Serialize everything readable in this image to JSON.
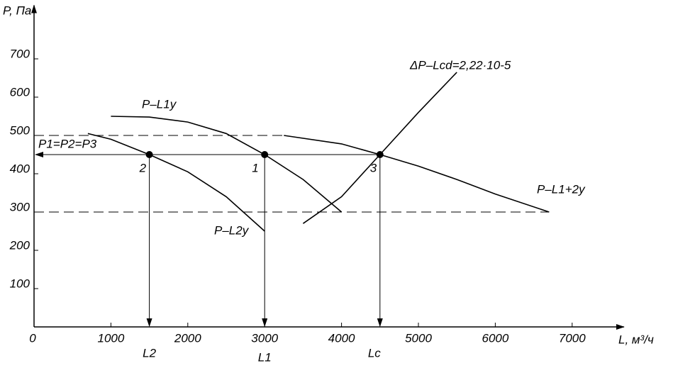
{
  "chart_data": {
    "type": "line",
    "y_label": "P, Па",
    "x_label": "L, м³/ч",
    "xlim": [
      0,
      7600
    ],
    "ylim": [
      0,
      825
    ],
    "xticks": [
      0,
      1000,
      2000,
      3000,
      4000,
      5000,
      6000,
      7000
    ],
    "yticks": [
      100,
      200,
      300,
      400,
      500,
      600,
      700
    ],
    "color": "#000000",
    "series": [
      {
        "name": "P–L1y",
        "x": [
          1000,
          1500,
          2000,
          2500,
          3000,
          3500,
          4000
        ],
        "values": [
          550,
          548,
          535,
          505,
          450,
          385,
          300
        ]
      },
      {
        "name": "P–L2y",
        "x": [
          700,
          1000,
          1500,
          2000,
          2500,
          3000
        ],
        "values": [
          505,
          490,
          450,
          405,
          340,
          250
        ]
      },
      {
        "name": "P–L1+2y",
        "x": [
          3250,
          4000,
          4500,
          5000,
          5500,
          6000,
          6700
        ],
        "values": [
          500,
          478,
          450,
          420,
          385,
          347,
          300
        ]
      },
      {
        "name": "ΔP–Lcd=2,22·10-5",
        "x": [
          3500,
          4000,
          4500,
          5000,
          5500
        ],
        "values": [
          270,
          340,
          450,
          560,
          665
        ]
      }
    ],
    "points": [
      {
        "label": "2",
        "x": 1500,
        "y": 450
      },
      {
        "label": "1",
        "x": 3000,
        "y": 450
      },
      {
        "label": "3",
        "x": 4500,
        "y": 450
      }
    ],
    "drop_lines": [
      {
        "label": "L2",
        "x": 1500
      },
      {
        "label": "L1",
        "x": 3000
      },
      {
        "label": "Lc",
        "x": 4500
      }
    ],
    "pressure_line": {
      "label": "P1=P2=P3",
      "y": 450,
      "x_end": 4500
    },
    "dashed_lines": [
      {
        "y": 500,
        "x_end": 3250
      },
      {
        "y": 300,
        "x_end": 6700
      }
    ]
  }
}
